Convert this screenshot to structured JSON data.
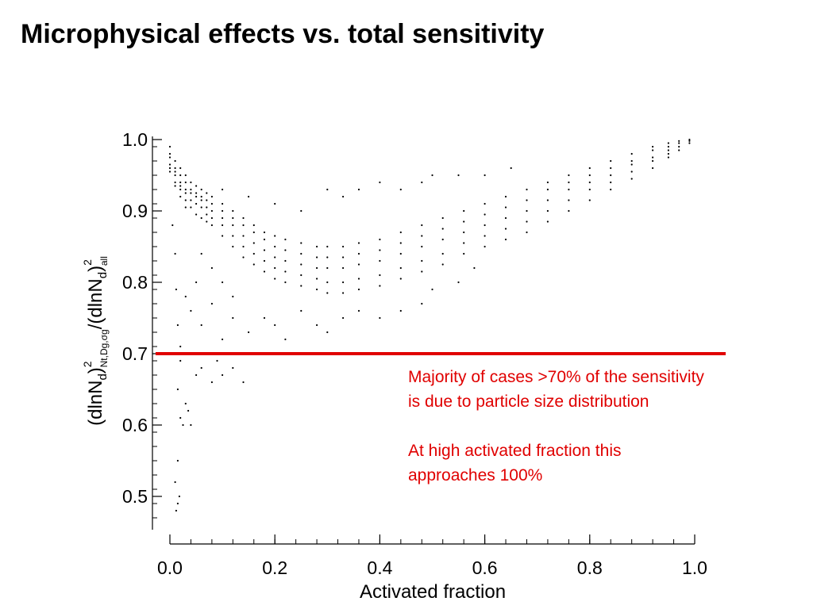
{
  "slide_title": "Microphysical effects vs. total sensitivity",
  "chart_data": {
    "type": "scatter",
    "title": "",
    "xlabel": "Activated fraction",
    "ylabel": {
      "base": "(dlnN",
      "sub1": "d",
      "mid": ")",
      "sup1": "2",
      "sub2": "Nt,Dg,σg",
      "mid2": "/(dlnN",
      "sub3": "d",
      "mid3": ")",
      "sup2": "2",
      "sub4": "all"
    },
    "xlim": [
      0.0,
      1.0
    ],
    "ylim": [
      0.45,
      1.0
    ],
    "x_ticks": [
      "0.0",
      "0.2",
      "0.4",
      "0.6",
      "0.8",
      "1.0"
    ],
    "y_ticks": [
      "0.5",
      "0.6",
      "0.7",
      "0.8",
      "0.9",
      "1.0"
    ],
    "point_color": "#000000",
    "reference_line": {
      "y": 0.7,
      "color": "#e00000"
    },
    "points": [
      [
        0.0,
        0.99
      ],
      [
        0.0,
        0.98
      ],
      [
        0.0,
        0.975
      ],
      [
        0.0,
        0.965
      ],
      [
        0.0,
        0.96
      ],
      [
        0.0,
        0.955
      ],
      [
        0.01,
        0.97
      ],
      [
        0.01,
        0.96
      ],
      [
        0.01,
        0.955
      ],
      [
        0.01,
        0.95
      ],
      [
        0.01,
        0.94
      ],
      [
        0.01,
        0.935
      ],
      [
        0.02,
        0.96
      ],
      [
        0.02,
        0.95
      ],
      [
        0.02,
        0.94
      ],
      [
        0.02,
        0.935
      ],
      [
        0.02,
        0.93
      ],
      [
        0.02,
        0.92
      ],
      [
        0.03,
        0.95
      ],
      [
        0.03,
        0.94
      ],
      [
        0.03,
        0.93
      ],
      [
        0.03,
        0.925
      ],
      [
        0.03,
        0.915
      ],
      [
        0.03,
        0.905
      ],
      [
        0.04,
        0.94
      ],
      [
        0.04,
        0.93
      ],
      [
        0.04,
        0.925
      ],
      [
        0.04,
        0.915
      ],
      [
        0.04,
        0.905
      ],
      [
        0.05,
        0.935
      ],
      [
        0.05,
        0.925
      ],
      [
        0.05,
        0.92
      ],
      [
        0.05,
        0.91
      ],
      [
        0.05,
        0.895
      ],
      [
        0.06,
        0.93
      ],
      [
        0.06,
        0.92
      ],
      [
        0.06,
        0.915
      ],
      [
        0.06,
        0.905
      ],
      [
        0.06,
        0.89
      ],
      [
        0.07,
        0.925
      ],
      [
        0.07,
        0.915
      ],
      [
        0.07,
        0.905
      ],
      [
        0.07,
        0.895
      ],
      [
        0.07,
        0.885
      ],
      [
        0.08,
        0.92
      ],
      [
        0.08,
        0.91
      ],
      [
        0.08,
        0.9
      ],
      [
        0.08,
        0.89
      ],
      [
        0.08,
        0.88
      ],
      [
        0.1,
        0.91
      ],
      [
        0.1,
        0.9
      ],
      [
        0.1,
        0.89
      ],
      [
        0.1,
        0.88
      ],
      [
        0.1,
        0.865
      ],
      [
        0.12,
        0.9
      ],
      [
        0.12,
        0.89
      ],
      [
        0.12,
        0.88
      ],
      [
        0.12,
        0.865
      ],
      [
        0.12,
        0.85
      ],
      [
        0.14,
        0.89
      ],
      [
        0.14,
        0.88
      ],
      [
        0.14,
        0.865
      ],
      [
        0.14,
        0.85
      ],
      [
        0.14,
        0.835
      ],
      [
        0.16,
        0.88
      ],
      [
        0.16,
        0.87
      ],
      [
        0.16,
        0.855
      ],
      [
        0.16,
        0.84
      ],
      [
        0.16,
        0.825
      ],
      [
        0.18,
        0.87
      ],
      [
        0.18,
        0.86
      ],
      [
        0.18,
        0.845
      ],
      [
        0.18,
        0.83
      ],
      [
        0.18,
        0.815
      ],
      [
        0.2,
        0.865
      ],
      [
        0.2,
        0.85
      ],
      [
        0.2,
        0.835
      ],
      [
        0.2,
        0.82
      ],
      [
        0.2,
        0.805
      ],
      [
        0.22,
        0.86
      ],
      [
        0.22,
        0.845
      ],
      [
        0.22,
        0.83
      ],
      [
        0.22,
        0.815
      ],
      [
        0.22,
        0.8
      ],
      [
        0.25,
        0.855
      ],
      [
        0.25,
        0.84
      ],
      [
        0.25,
        0.825
      ],
      [
        0.25,
        0.81
      ],
      [
        0.25,
        0.795
      ],
      [
        0.28,
        0.85
      ],
      [
        0.28,
        0.835
      ],
      [
        0.28,
        0.82
      ],
      [
        0.28,
        0.805
      ],
      [
        0.28,
        0.79
      ],
      [
        0.3,
        0.85
      ],
      [
        0.3,
        0.835
      ],
      [
        0.3,
        0.82
      ],
      [
        0.3,
        0.8
      ],
      [
        0.3,
        0.785
      ],
      [
        0.33,
        0.85
      ],
      [
        0.33,
        0.835
      ],
      [
        0.33,
        0.82
      ],
      [
        0.33,
        0.8
      ],
      [
        0.33,
        0.785
      ],
      [
        0.36,
        0.855
      ],
      [
        0.36,
        0.84
      ],
      [
        0.36,
        0.825
      ],
      [
        0.36,
        0.805
      ],
      [
        0.36,
        0.79
      ],
      [
        0.4,
        0.86
      ],
      [
        0.4,
        0.845
      ],
      [
        0.4,
        0.83
      ],
      [
        0.4,
        0.81
      ],
      [
        0.4,
        0.795
      ],
      [
        0.44,
        0.87
      ],
      [
        0.44,
        0.855
      ],
      [
        0.44,
        0.84
      ],
      [
        0.44,
        0.82
      ],
      [
        0.44,
        0.805
      ],
      [
        0.48,
        0.88
      ],
      [
        0.48,
        0.865
      ],
      [
        0.48,
        0.85
      ],
      [
        0.48,
        0.83
      ],
      [
        0.48,
        0.815
      ],
      [
        0.52,
        0.89
      ],
      [
        0.52,
        0.875
      ],
      [
        0.52,
        0.86
      ],
      [
        0.52,
        0.84
      ],
      [
        0.52,
        0.825
      ],
      [
        0.56,
        0.9
      ],
      [
        0.56,
        0.885
      ],
      [
        0.56,
        0.87
      ],
      [
        0.56,
        0.855
      ],
      [
        0.56,
        0.84
      ],
      [
        0.6,
        0.91
      ],
      [
        0.6,
        0.895
      ],
      [
        0.6,
        0.88
      ],
      [
        0.6,
        0.865
      ],
      [
        0.6,
        0.85
      ],
      [
        0.64,
        0.92
      ],
      [
        0.64,
        0.905
      ],
      [
        0.64,
        0.89
      ],
      [
        0.64,
        0.875
      ],
      [
        0.64,
        0.86
      ],
      [
        0.68,
        0.93
      ],
      [
        0.68,
        0.915
      ],
      [
        0.68,
        0.9
      ],
      [
        0.68,
        0.885
      ],
      [
        0.68,
        0.87
      ],
      [
        0.72,
        0.94
      ],
      [
        0.72,
        0.93
      ],
      [
        0.72,
        0.915
      ],
      [
        0.72,
        0.9
      ],
      [
        0.72,
        0.885
      ],
      [
        0.76,
        0.95
      ],
      [
        0.76,
        0.94
      ],
      [
        0.76,
        0.93
      ],
      [
        0.76,
        0.915
      ],
      [
        0.76,
        0.9
      ],
      [
        0.8,
        0.96
      ],
      [
        0.8,
        0.95
      ],
      [
        0.8,
        0.94
      ],
      [
        0.8,
        0.93
      ],
      [
        0.8,
        0.915
      ],
      [
        0.84,
        0.97
      ],
      [
        0.84,
        0.96
      ],
      [
        0.84,
        0.95
      ],
      [
        0.84,
        0.94
      ],
      [
        0.84,
        0.93
      ],
      [
        0.88,
        0.98
      ],
      [
        0.88,
        0.97
      ],
      [
        0.88,
        0.965
      ],
      [
        0.88,
        0.955
      ],
      [
        0.88,
        0.945
      ],
      [
        0.92,
        0.99
      ],
      [
        0.92,
        0.985
      ],
      [
        0.92,
        0.975
      ],
      [
        0.92,
        0.97
      ],
      [
        0.92,
        0.96
      ],
      [
        0.95,
        0.995
      ],
      [
        0.95,
        0.99
      ],
      [
        0.95,
        0.985
      ],
      [
        0.95,
        0.98
      ],
      [
        0.95,
        0.975
      ],
      [
        0.97,
        0.998
      ],
      [
        0.97,
        0.995
      ],
      [
        0.97,
        0.99
      ],
      [
        0.97,
        0.985
      ],
      [
        0.99,
        1.0
      ],
      [
        0.99,
        0.998
      ],
      [
        0.99,
        0.995
      ],
      [
        0.005,
        0.88
      ],
      [
        0.01,
        0.84
      ],
      [
        0.012,
        0.79
      ],
      [
        0.015,
        0.74
      ],
      [
        0.02,
        0.71
      ],
      [
        0.02,
        0.69
      ],
      [
        0.015,
        0.65
      ],
      [
        0.02,
        0.61
      ],
      [
        0.025,
        0.6
      ],
      [
        0.015,
        0.55
      ],
      [
        0.01,
        0.52
      ],
      [
        0.015,
        0.49
      ],
      [
        0.012,
        0.48
      ],
      [
        0.018,
        0.5
      ],
      [
        0.03,
        0.63
      ],
      [
        0.035,
        0.62
      ],
      [
        0.04,
        0.6
      ],
      [
        0.05,
        0.67
      ],
      [
        0.06,
        0.68
      ],
      [
        0.07,
        0.7
      ],
      [
        0.08,
        0.66
      ],
      [
        0.09,
        0.69
      ],
      [
        0.1,
        0.67
      ],
      [
        0.12,
        0.68
      ],
      [
        0.13,
        0.7
      ],
      [
        0.14,
        0.66
      ],
      [
        0.03,
        0.78
      ],
      [
        0.04,
        0.76
      ],
      [
        0.05,
        0.8
      ],
      [
        0.06,
        0.74
      ],
      [
        0.08,
        0.77
      ],
      [
        0.1,
        0.72
      ],
      [
        0.12,
        0.75
      ],
      [
        0.15,
        0.73
      ],
      [
        0.18,
        0.75
      ],
      [
        0.2,
        0.74
      ],
      [
        0.22,
        0.72
      ],
      [
        0.25,
        0.76
      ],
      [
        0.28,
        0.74
      ],
      [
        0.3,
        0.73
      ],
      [
        0.33,
        0.75
      ],
      [
        0.36,
        0.76
      ],
      [
        0.4,
        0.75
      ],
      [
        0.44,
        0.76
      ],
      [
        0.48,
        0.77
      ],
      [
        0.5,
        0.79
      ],
      [
        0.55,
        0.8
      ],
      [
        0.58,
        0.82
      ],
      [
        0.3,
        0.93
      ],
      [
        0.33,
        0.92
      ],
      [
        0.36,
        0.93
      ],
      [
        0.4,
        0.94
      ],
      [
        0.44,
        0.93
      ],
      [
        0.48,
        0.94
      ],
      [
        0.5,
        0.95
      ],
      [
        0.55,
        0.95
      ],
      [
        0.6,
        0.95
      ],
      [
        0.65,
        0.96
      ],
      [
        0.25,
        0.9
      ],
      [
        0.2,
        0.91
      ],
      [
        0.15,
        0.92
      ],
      [
        0.1,
        0.93
      ],
      [
        0.06,
        0.84
      ],
      [
        0.08,
        0.82
      ],
      [
        0.1,
        0.8
      ],
      [
        0.12,
        0.78
      ]
    ]
  },
  "annotations": [
    "Majority of cases >70% of the sensitivity is due to particle size distribution",
    "At high activated fraction this approaches 100%"
  ]
}
